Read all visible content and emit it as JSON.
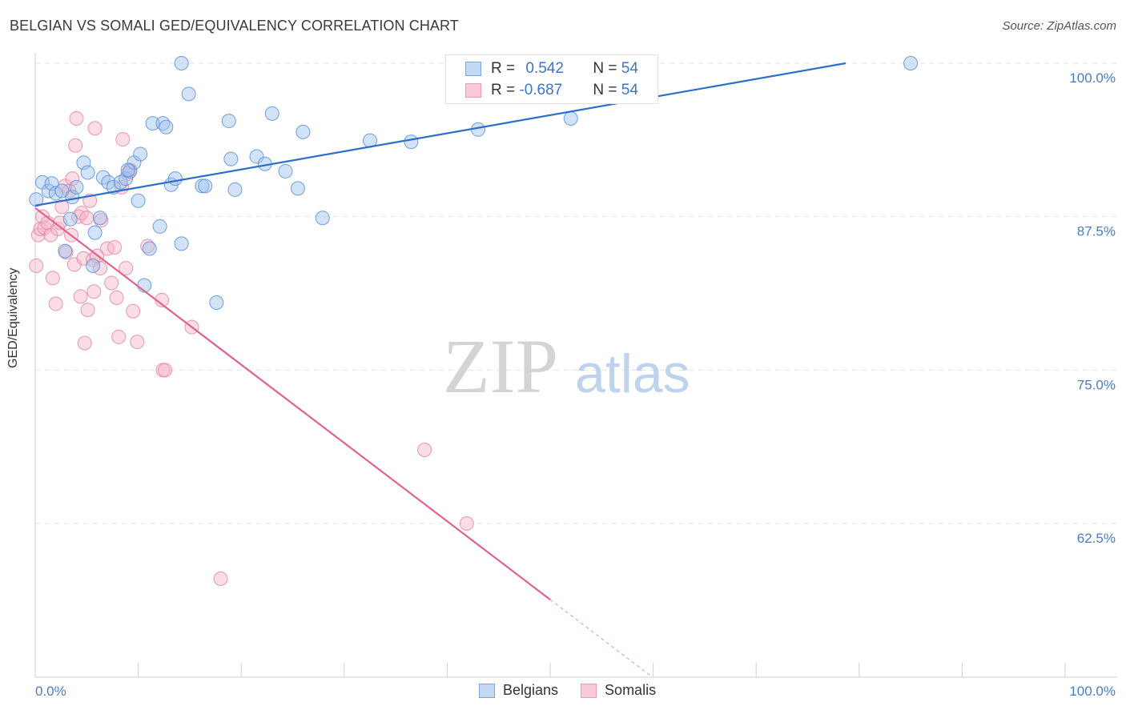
{
  "title": "BELGIAN VS SOMALI GED/EQUIVALENCY CORRELATION CHART",
  "source": "Source: ZipAtlas.com",
  "watermark": {
    "zip": "ZIP",
    "atlas": "atlas"
  },
  "legend": {
    "rows": [
      {
        "r_label": "R = ",
        "r_value": "0.542",
        "n_label": "N = ",
        "n_value": "54"
      },
      {
        "r_label": "R = ",
        "r_value": "-0.687",
        "n_label": "N = ",
        "n_value": "54"
      }
    ]
  },
  "bottom_legend": {
    "belgians": "Belgians",
    "somalis": "Somalis"
  },
  "colors": {
    "belgian_fill": "#9ec1ee",
    "belgian_stroke": "#5b8fd6",
    "belgian_line": "#2b6fcc",
    "somali_fill": "#f6b3c8",
    "somali_stroke": "#e57fa0",
    "somali_line": "#e0628e",
    "tick_label": "#4a7cc9"
  },
  "chart_data": {
    "type": "scatter",
    "title": "BELGIAN VS SOMALI GED/EQUIVALENCY CORRELATION CHART",
    "xlabel": "",
    "ylabel": "GED/Equivalency",
    "xlim": [
      0,
      100
    ],
    "ylim": [
      50,
      100
    ],
    "x_tick_labels": [
      "0.0%",
      "100.0%"
    ],
    "y_ticks": [
      62.5,
      75.0,
      87.5,
      100.0
    ],
    "y_tick_labels": [
      "62.5%",
      "75.0%",
      "87.5%",
      "100.0%"
    ],
    "grid": true,
    "series": [
      {
        "name": "Belgians",
        "r": 0.542,
        "n": 54,
        "trend": {
          "x": [
            0,
            78.7
          ],
          "y": [
            88.4,
            100.0
          ]
        },
        "points": [
          [
            0.7,
            90.3
          ],
          [
            1.3,
            89.6
          ],
          [
            1.6,
            90.2
          ],
          [
            2.0,
            89.4
          ],
          [
            2.6,
            89.6
          ],
          [
            3.4,
            87.3
          ],
          [
            3.6,
            89.1
          ],
          [
            4.0,
            89.9
          ],
          [
            2.9,
            84.7
          ],
          [
            4.7,
            91.9
          ],
          [
            5.1,
            91.1
          ],
          [
            5.6,
            83.5
          ],
          [
            5.8,
            86.2
          ],
          [
            6.3,
            87.4
          ],
          [
            6.6,
            90.7
          ],
          [
            7.1,
            90.3
          ],
          [
            7.6,
            89.9
          ],
          [
            8.3,
            90.3
          ],
          [
            8.8,
            90.6
          ],
          [
            9.2,
            91.2
          ],
          [
            9.6,
            91.9
          ],
          [
            10.0,
            88.8
          ],
          [
            10.2,
            92.6
          ],
          [
            10.6,
            81.9
          ],
          [
            11.1,
            84.9
          ],
          [
            11.4,
            95.1
          ],
          [
            12.1,
            86.7
          ],
          [
            12.4,
            95.1
          ],
          [
            12.7,
            94.8
          ],
          [
            13.2,
            90.1
          ],
          [
            13.6,
            90.6
          ],
          [
            14.2,
            100.0
          ],
          [
            14.2,
            85.3
          ],
          [
            14.9,
            97.5
          ],
          [
            16.2,
            90.0
          ],
          [
            16.5,
            90.0
          ],
          [
            17.6,
            80.5
          ],
          [
            18.8,
            95.3
          ],
          [
            19.0,
            92.2
          ],
          [
            19.4,
            89.7
          ],
          [
            21.5,
            92.4
          ],
          [
            22.3,
            91.8
          ],
          [
            23.0,
            95.9
          ],
          [
            24.3,
            91.2
          ],
          [
            25.5,
            89.8
          ],
          [
            26.0,
            94.4
          ],
          [
            27.9,
            87.4
          ],
          [
            32.5,
            93.7
          ],
          [
            36.5,
            93.6
          ],
          [
            43.0,
            94.6
          ],
          [
            52.0,
            95.5
          ],
          [
            85.0,
            100.0
          ],
          [
            0.1,
            88.9
          ],
          [
            9.0,
            91.3
          ]
        ]
      },
      {
        "name": "Somalis",
        "r": -0.687,
        "n": 54,
        "trend": {
          "x": [
            0,
            50.0
          ],
          "y": [
            88.2,
            56.3
          ]
        },
        "trend_dashed": {
          "x": [
            50.0,
            59.9
          ],
          "y": [
            56.3,
            50.0
          ]
        },
        "points": [
          [
            0.1,
            83.5
          ],
          [
            0.3,
            86.0
          ],
          [
            0.5,
            86.5
          ],
          [
            0.7,
            87.5
          ],
          [
            0.9,
            86.6
          ],
          [
            1.2,
            87.0
          ],
          [
            1.5,
            86.0
          ],
          [
            1.7,
            82.5
          ],
          [
            2.0,
            80.4
          ],
          [
            2.2,
            86.5
          ],
          [
            2.4,
            87.0
          ],
          [
            2.6,
            88.3
          ],
          [
            2.9,
            90.0
          ],
          [
            3.0,
            84.6
          ],
          [
            3.3,
            89.6
          ],
          [
            3.5,
            86.0
          ],
          [
            3.6,
            90.6
          ],
          [
            3.8,
            83.6
          ],
          [
            3.9,
            93.3
          ],
          [
            4.0,
            95.5
          ],
          [
            4.2,
            87.5
          ],
          [
            4.4,
            81.0
          ],
          [
            4.5,
            87.8
          ],
          [
            4.7,
            84.1
          ],
          [
            4.8,
            77.2
          ],
          [
            5.0,
            87.4
          ],
          [
            5.1,
            79.9
          ],
          [
            5.3,
            88.8
          ],
          [
            5.6,
            84.0
          ],
          [
            5.7,
            81.4
          ],
          [
            5.8,
            94.7
          ],
          [
            6.0,
            84.3
          ],
          [
            6.3,
            83.3
          ],
          [
            6.4,
            87.2
          ],
          [
            7.0,
            84.9
          ],
          [
            7.4,
            82.1
          ],
          [
            7.7,
            85.0
          ],
          [
            7.9,
            80.9
          ],
          [
            8.1,
            77.7
          ],
          [
            8.4,
            89.9
          ],
          [
            8.5,
            93.8
          ],
          [
            8.8,
            83.3
          ],
          [
            9.0,
            91.0
          ],
          [
            9.2,
            91.3
          ],
          [
            9.5,
            79.8
          ],
          [
            9.9,
            77.3
          ],
          [
            10.9,
            85.1
          ],
          [
            12.3,
            80.7
          ],
          [
            12.4,
            75.0
          ],
          [
            12.6,
            75.0
          ],
          [
            15.2,
            78.5
          ],
          [
            18.0,
            58.0
          ],
          [
            37.8,
            68.5
          ],
          [
            41.9,
            62.5
          ]
        ]
      }
    ]
  }
}
